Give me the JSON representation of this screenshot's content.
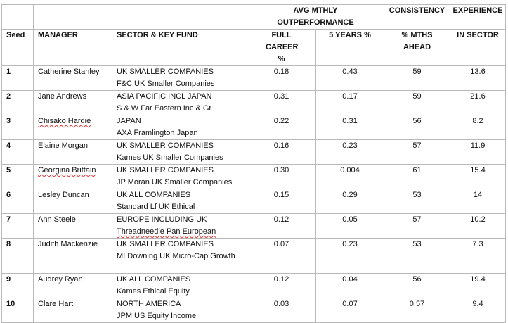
{
  "header": {
    "avg_group": "AVG MTHLY OUTPERFORMANCE",
    "consistency": "CONSISTENCY",
    "experience": "EXPERIENCE",
    "cols": [
      "Seed",
      "MANAGER",
      "SECTOR  & KEY FUND",
      "FULL CAREER %",
      "5 YEARS %",
      "% MTHS AHEAD",
      "IN SECTOR"
    ]
  },
  "rows": [
    {
      "seed": "1",
      "manager": "Catherine Stanley",
      "sector": "UK SMALLER COMPANIES",
      "fund": "F&C UK Smaller Companies",
      "full": "0.18",
      "five": "0.43",
      "ahead": "59",
      "exp": "13.6"
    },
    {
      "seed": "2",
      "manager": "Jane Andrews",
      "sector": "ASIA PACIFIC INCL JAPAN",
      "fund": "S & W Far Eastern Inc & Gr",
      "full": "0.31",
      "five": "0.17",
      "ahead": "59",
      "exp": "21.6"
    },
    {
      "seed": "3",
      "manager": "Chisako Hardie",
      "sector": "JAPAN",
      "fund": "AXA Framlington Japan",
      "full": "0.22",
      "five": "0.31",
      "ahead": "56",
      "exp": "8.2"
    },
    {
      "seed": "4",
      "manager": "Elaine Morgan",
      "sector": "UK SMALLER COMPANIES",
      "fund": "Kames UK Smaller Companies",
      "full": "0.16",
      "five": "0.23",
      "ahead": "57",
      "exp": "11.9"
    },
    {
      "seed": "5",
      "manager": "Georgina Brittain",
      "sector": "UK SMALLER COMPANIES",
      "fund": "JP Moran UK Smaller Companies",
      "full": "0.30",
      "five": "0.004",
      "ahead": "61",
      "exp": "15.4"
    },
    {
      "seed": "6",
      "manager": "Lesley Duncan",
      "sector": "UK ALL COMPANIES",
      "fund": "Standard Lf UK Ethical",
      "full": "0.15",
      "five": "0.29",
      "ahead": "53",
      "exp": "14"
    },
    {
      "seed": "7",
      "manager": "Ann Steele",
      "sector": "EUROPE INCLUDING UK",
      "fund": "Threadneedle Pan European",
      "full": "0.12",
      "five": "0.05",
      "ahead": "57",
      "exp": "10.2"
    },
    {
      "seed": "8",
      "manager": "Judith Mackenzie",
      "sector": "UK SMALLER COMPANIES",
      "fund": "MI Downing UK Micro-Cap Growth",
      "full": "0.07",
      "five": "0.23",
      "ahead": "53",
      "exp": "7.3"
    },
    {
      "seed": "9",
      "manager": "Audrey Ryan",
      "sector": "UK ALL COMPANIES",
      "fund": "Kames Ethical Equity",
      "full": "0.12",
      "five": "0.04",
      "ahead": "56",
      "exp": "19.4"
    },
    {
      "seed": "10",
      "manager": "Clare Hart",
      "sector": "NORTH  AMERICA",
      "fund": "JPM US Equity Income",
      "full": "0.03",
      "five": "0.07",
      "ahead": "0.57",
      "exp": "9.4"
    }
  ]
}
